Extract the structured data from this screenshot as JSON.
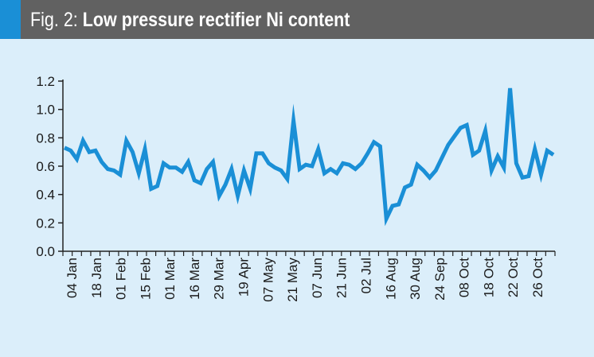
{
  "figure": {
    "label": "Fig. 2:",
    "title": "Low pressure rectifier Ni content"
  },
  "colors": {
    "header_bg": "#616161",
    "accent": "#1a8fd6",
    "panel_bg": "#dbeefa",
    "line": "#1a8fd6"
  },
  "chart_data": {
    "type": "line",
    "title": "Low pressure rectifier Ni content",
    "xlabel": "",
    "ylabel": "",
    "ylim": [
      0,
      1.2
    ],
    "yticks": [
      0.0,
      0.2,
      0.4,
      0.6,
      0.8,
      1.0,
      1.2
    ],
    "ytick_labels": [
      "0.0",
      "0.2",
      "0.4",
      "0.6",
      "0.8",
      "1.0",
      "1.2"
    ],
    "grid": false,
    "legend": "none",
    "x_tick_labels": [
      "04 Jan",
      "18 Jan",
      "01 Feb",
      "15 Feb",
      "01 Mar",
      "16 Mar",
      "29 Mar",
      "19 Apr",
      "07 May",
      "21 May",
      "07 Jun",
      "21 Jun",
      "02 Jul",
      "16 Aug",
      "30 Aug",
      "24 Sep",
      "08 Oct",
      "18 Oct",
      "22 Oct",
      "26 Oct"
    ],
    "series": [
      {
        "values": [
          0.73,
          0.71,
          0.65,
          0.78,
          0.7,
          0.71,
          0.63,
          0.58,
          0.57,
          0.54,
          0.78,
          0.7,
          0.55,
          0.72,
          0.44,
          0.46,
          0.62,
          0.59,
          0.59,
          0.56,
          0.63,
          0.5,
          0.48,
          0.58,
          0.63,
          0.39,
          0.47,
          0.58,
          0.39,
          0.57,
          0.44,
          0.69,
          0.69,
          0.62,
          0.59,
          0.57,
          0.51,
          0.92,
          0.58,
          0.61,
          0.6,
          0.72,
          0.55,
          0.58,
          0.55,
          0.62,
          0.61,
          0.58,
          0.62,
          0.69,
          0.77,
          0.74,
          0.23,
          0.32,
          0.33,
          0.45,
          0.47,
          0.61,
          0.57,
          0.52,
          0.57,
          0.66,
          0.75,
          0.81,
          0.87,
          0.89,
          0.68,
          0.71,
          0.85,
          0.57,
          0.67,
          0.59,
          1.15,
          0.62,
          0.52,
          0.53,
          0.72,
          0.54,
          0.71,
          0.68
        ]
      }
    ]
  }
}
